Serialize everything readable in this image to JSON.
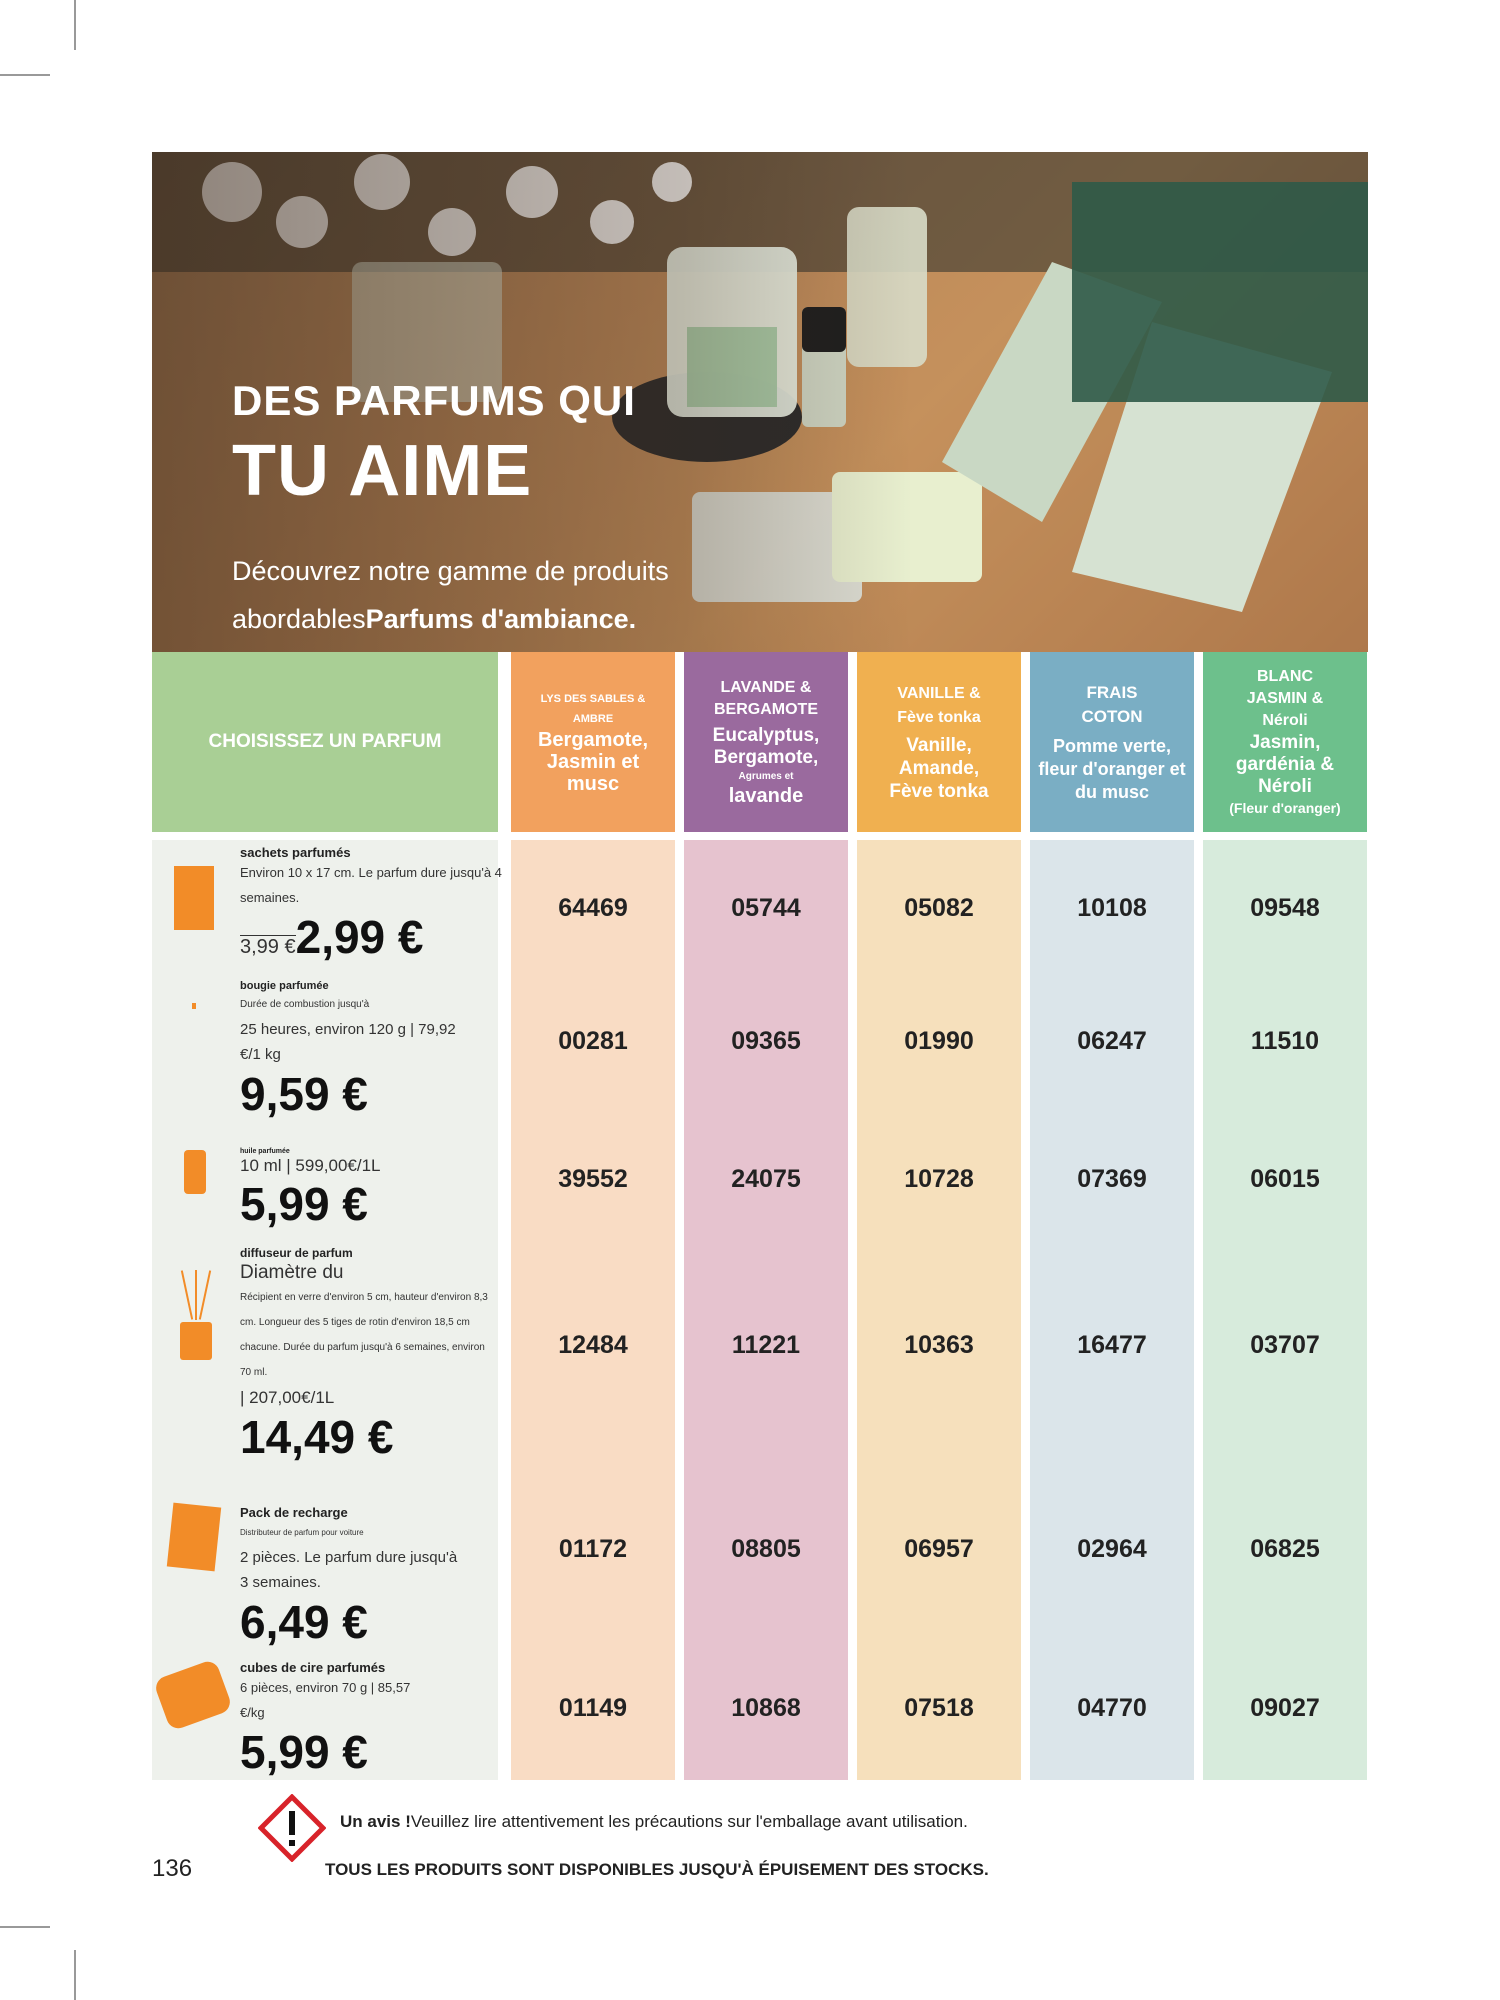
{
  "hero": {
    "title_line1": "DES PARFUMS QUI",
    "title_line2": "TU AIME",
    "subtitle_plain": "Découvrez notre gamme de produits abordables",
    "subtitle_bold": "Parfums d'ambiance."
  },
  "table": {
    "left_header": "CHOISISSEZ UN PARFUM",
    "columns": [
      {
        "name": "LYS DES SABLES & AMBRE",
        "notes": "Bergamote, Jasmin et musc",
        "color": "#f2a15e",
        "bg": "#f9dcc4"
      },
      {
        "name": "LAVANDE & BERGAMOTE",
        "notes": "Eucalyptus, Bergamote,",
        "notes_small": "Agrumes et",
        "notes_end": "lavande",
        "color": "#9a6a9e",
        "bg": "#e6c3cf"
      },
      {
        "name": "VANILLE & Fève tonka",
        "notes": "Vanille, Amande, Fève tonka",
        "color": "#f0b050",
        "bg": "#f6e0bc"
      },
      {
        "name": "FRAIS COTON",
        "notes": "Pomme verte, fleur d'oranger et du musc",
        "color": "#7aaec4",
        "bg": "#dbe5ea"
      },
      {
        "name": "BLANC JASMIN & Néroli",
        "notes": "Jasmin, gardénia & Néroli",
        "notes_small": "(Fleur d'oranger)",
        "color": "#6dc08c",
        "bg": "#d7ebdc"
      }
    ],
    "rows": [
      {
        "codes": [
          "64469",
          "05744",
          "05082",
          "10108",
          "09548"
        ]
      },
      {
        "codes": [
          "00281",
          "09365",
          "01990",
          "06247",
          "11510"
        ]
      },
      {
        "codes": [
          "39552",
          "24075",
          "10728",
          "07369",
          "06015"
        ]
      },
      {
        "codes": [
          "12484",
          "11221",
          "10363",
          "16477",
          "03707"
        ]
      },
      {
        "codes": [
          "01172",
          "08805",
          "06957",
          "02964",
          "06825"
        ]
      },
      {
        "codes": [
          "01149",
          "10868",
          "07518",
          "04770",
          "09027"
        ]
      }
    ]
  },
  "products": [
    {
      "name": "sachets parfumés",
      "desc": "Environ 10 x 17 cm. Le parfum dure jusqu'à 4 semaines.",
      "old_price": "3,99 €",
      "price": "2,99 €"
    },
    {
      "name": "bougie parfumée",
      "desc_small": "Durée de combustion jusqu'à",
      "desc": "25 heures, environ 120 g | 79,92 €/1 kg",
      "price": "9,59 €"
    },
    {
      "name": "huile parfumée",
      "desc": "10 ml | 599,00€/1L",
      "price": "5,99 €"
    },
    {
      "name": "diffuseur de parfum",
      "desc": "Diamètre du",
      "desc_small": "Récipient en verre d'environ 5 cm, hauteur d'environ 8,3 cm. Longueur des 5 tiges de rotin d'environ 18,5 cm chacune. Durée du parfum jusqu'à 6 semaines, environ 70 ml.",
      "desc_end": "| 207,00€/1L",
      "price": "14,49 €"
    },
    {
      "name": "Pack de recharge",
      "desc_small": "Distributeur de parfum pour voiture",
      "desc": "2 pièces. Le parfum dure jusqu'à 3 semaines.",
      "price": "6,49 €"
    },
    {
      "name": "cubes de cire parfumés",
      "desc": "6 pièces, environ 70 g | 85,57 €/kg",
      "price": "5,99 €"
    }
  ],
  "footer": {
    "warning_bold": "Un avis !",
    "warning_text": "Veuillez lire attentivement les précautions sur l'emballage avant utilisation.",
    "stock_note": "TOUS LES PRODUITS SONT DISPONIBLES JUSQU'À ÉPUISEMENT DES STOCKS.",
    "page_number": "136"
  }
}
